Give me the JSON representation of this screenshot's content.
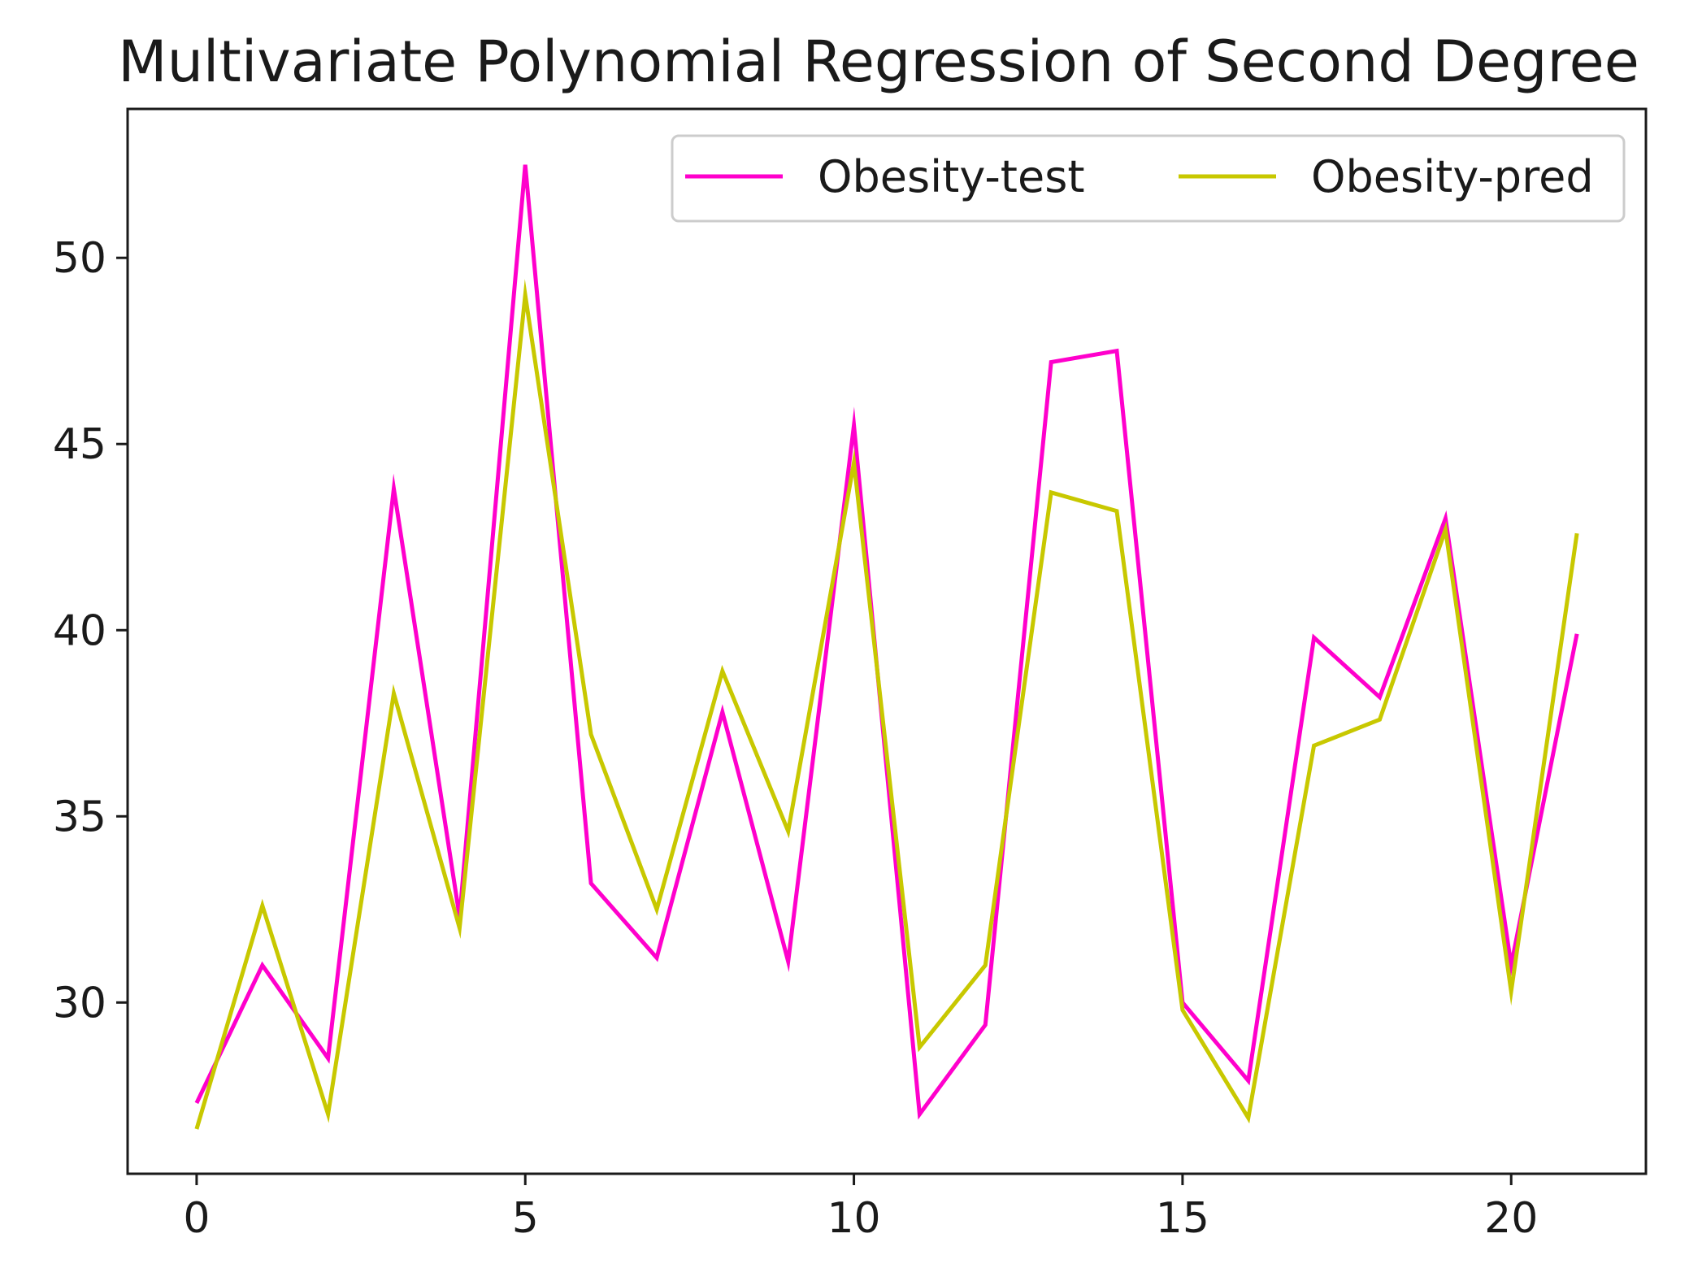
{
  "chart_data": {
    "type": "line",
    "title": "Multivariate Polynomial Regression of Second Degree",
    "xlabel": "",
    "ylabel": "",
    "xlim": [
      -1.05,
      22.05
    ],
    "ylim": [
      25.4,
      54.0
    ],
    "x": [
      0,
      1,
      2,
      3,
      4,
      5,
      6,
      7,
      8,
      9,
      10,
      11,
      12,
      13,
      14,
      15,
      16,
      17,
      18,
      19,
      20,
      21
    ],
    "x_ticks": [
      0,
      5,
      10,
      15,
      20
    ],
    "x_tick_labels": [
      "0",
      "5",
      "10",
      "15",
      "20"
    ],
    "y_ticks": [
      30,
      35,
      40,
      45,
      50
    ],
    "y_tick_labels": [
      "30",
      "35",
      "40",
      "45",
      "50"
    ],
    "grid": false,
    "legend_position": "top-right",
    "legend_columns": 2,
    "series": [
      {
        "name": "Obesity-test",
        "color": "#ff00cc",
        "values": [
          27.3,
          31.0,
          28.5,
          43.8,
          32.3,
          52.5,
          33.2,
          31.2,
          37.8,
          31.1,
          45.5,
          27.0,
          29.4,
          47.2,
          47.5,
          30.0,
          27.9,
          39.8,
          38.2,
          43.0,
          31.0,
          39.9
        ]
      },
      {
        "name": "Obesity-pred",
        "color": "#c8c800",
        "values": [
          26.6,
          32.6,
          27.0,
          38.3,
          32.0,
          49.0,
          37.2,
          32.5,
          38.9,
          34.6,
          44.5,
          28.8,
          31.0,
          43.7,
          43.2,
          29.8,
          26.9,
          36.9,
          37.6,
          42.7,
          30.3,
          42.6
        ]
      }
    ]
  }
}
